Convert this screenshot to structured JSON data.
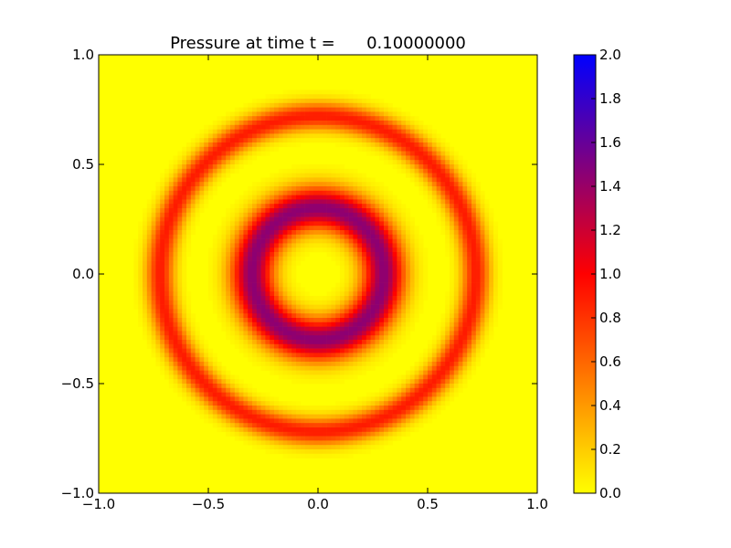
{
  "chart_data": {
    "type": "heatmap",
    "title": "Pressure at time t =      0.10000000",
    "xlabel": "",
    "ylabel": "",
    "xlim": [
      -1.0,
      1.0
    ],
    "ylim": [
      -1.0,
      1.0
    ],
    "x_ticks": [
      "−1.0",
      "−0.5",
      "0.0",
      "0.5",
      "1.0"
    ],
    "y_ticks": [
      "−1.0",
      "−0.5",
      "0.0",
      "0.5",
      "1.0"
    ],
    "colorbar": {
      "range": [
        0.0,
        2.0
      ],
      "ticks": [
        "0.0",
        "0.2",
        "0.4",
        "0.6",
        "0.8",
        "1.0",
        "1.2",
        "1.4",
        "1.6",
        "1.8",
        "2.0"
      ],
      "colors": [
        "#ffff00",
        "#ff0000",
        "#0000ff"
      ]
    },
    "field": {
      "background_value": 0.0,
      "rings": [
        {
          "center": [
            0.0,
            0.0
          ],
          "radius": 0.3,
          "width": 0.07,
          "peak_value": 1.45
        },
        {
          "center": [
            0.0,
            0.0
          ],
          "radius": 0.72,
          "width": 0.045,
          "peak_value": 0.9
        }
      ]
    },
    "grid": false,
    "legend": "colorbar-right"
  }
}
